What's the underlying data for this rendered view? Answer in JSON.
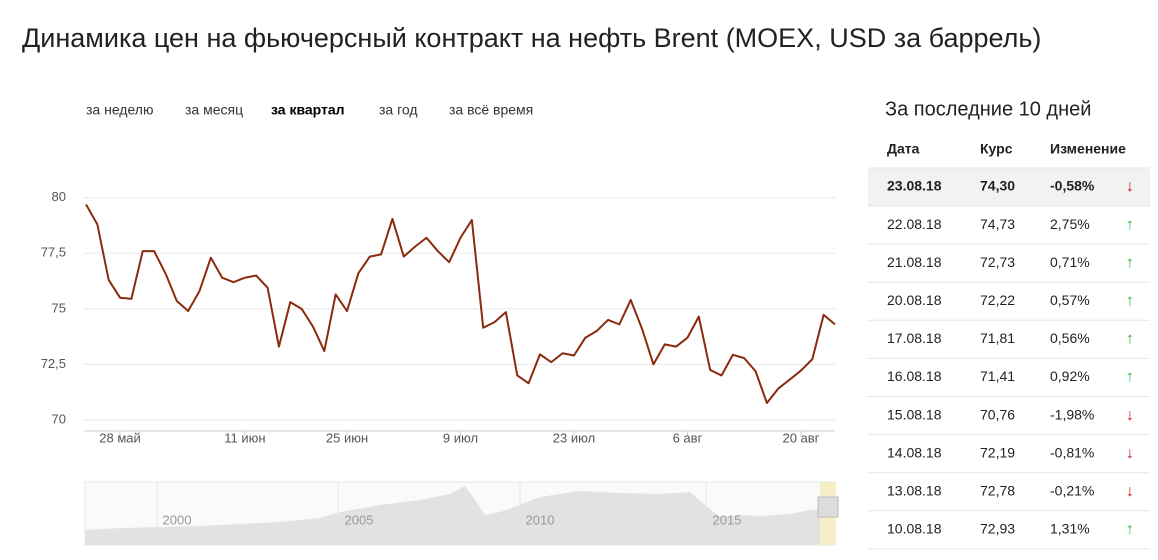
{
  "chart_data": {
    "type": "line",
    "title": "Динамика цен на фьючерсный контракт на нефть Brent (MOEX, USD за баррель)",
    "categories": [
      null,
      null,
      null,
      "28 май",
      null,
      null,
      null,
      null,
      null,
      null,
      null,
      null,
      null,
      null,
      "11 июн",
      null,
      null,
      null,
      null,
      null,
      null,
      null,
      null,
      "25 июн",
      null,
      null,
      null,
      null,
      null,
      null,
      null,
      null,
      null,
      "9 июл",
      null,
      null,
      null,
      null,
      null,
      null,
      null,
      null,
      null,
      "23 июл",
      null,
      null,
      null,
      null,
      null,
      null,
      null,
      null,
      null,
      "6 авг",
      null,
      null,
      null,
      null,
      null,
      null,
      null,
      null,
      null,
      "20 авг",
      null,
      null,
      null
    ],
    "series": [
      {
        "name": "Brent",
        "color": "#8a2a0e",
        "values": [
          79.7,
          78.8,
          76.3,
          75.5,
          75.45,
          77.6,
          77.6,
          76.6,
          75.35,
          74.9,
          75.8,
          77.3,
          76.4,
          76.2,
          76.4,
          76.5,
          75.95,
          73.3,
          75.3,
          75.0,
          74.2,
          73.1,
          75.65,
          74.9,
          76.6,
          77.35,
          77.45,
          79.05,
          77.35,
          77.8,
          78.2,
          77.6,
          77.1,
          78.2,
          79.0,
          74.15,
          74.4,
          74.85,
          72.0,
          71.65,
          72.95,
          72.6,
          73.0,
          72.9,
          73.7,
          74.0,
          74.5,
          74.3,
          75.4,
          74.1,
          72.5,
          73.4,
          73.3,
          73.7,
          74.65,
          72.25,
          72.0,
          72.93,
          72.78,
          72.19,
          70.76,
          71.41,
          71.81,
          72.22,
          72.73,
          74.73,
          74.3
        ]
      }
    ],
    "ylim": [
      69.5,
      80.8
    ],
    "yticks": [
      70,
      {
        "value": 72.5,
        "label": "72,5"
      },
      75,
      {
        "value": 77.5,
        "label": "77,5"
      },
      80
    ],
    "grid": true
  },
  "tabs": [
    {
      "label": "за неделю"
    },
    {
      "label": "за месяц"
    },
    {
      "label": "за квартал",
      "active": true
    },
    {
      "label": "за год"
    },
    {
      "label": "за всё время"
    }
  ],
  "navigator": {
    "labels": [
      "2000",
      "2005",
      "2010",
      "2015"
    ]
  },
  "table": {
    "title": "За последние 10 дней",
    "header": [
      "Дата",
      "Курс",
      "Изменение"
    ],
    "rows": [
      [
        "23.08.18",
        "74,30",
        "-0,58%",
        "↓"
      ],
      [
        "22.08.18",
        "74,73",
        "2,75%",
        "↑"
      ],
      [
        "21.08.18",
        "72,73",
        "0,71%",
        "↑"
      ],
      [
        "20.08.18",
        "72,22",
        "0,57%",
        "↑"
      ],
      [
        "17.08.18",
        "71,81",
        "0,56%",
        "↑"
      ],
      [
        "16.08.18",
        "71,41",
        "0,92%",
        "↑"
      ],
      [
        "15.08.18",
        "70,76",
        "-1,98%",
        "↓"
      ],
      [
        "14.08.18",
        "72,19",
        "-0,81%",
        "↓"
      ],
      [
        "13.08.18",
        "72,78",
        "-0,21%",
        "↓"
      ],
      [
        "10.08.18",
        "72,93",
        "1,31%",
        "↑"
      ]
    ]
  }
}
